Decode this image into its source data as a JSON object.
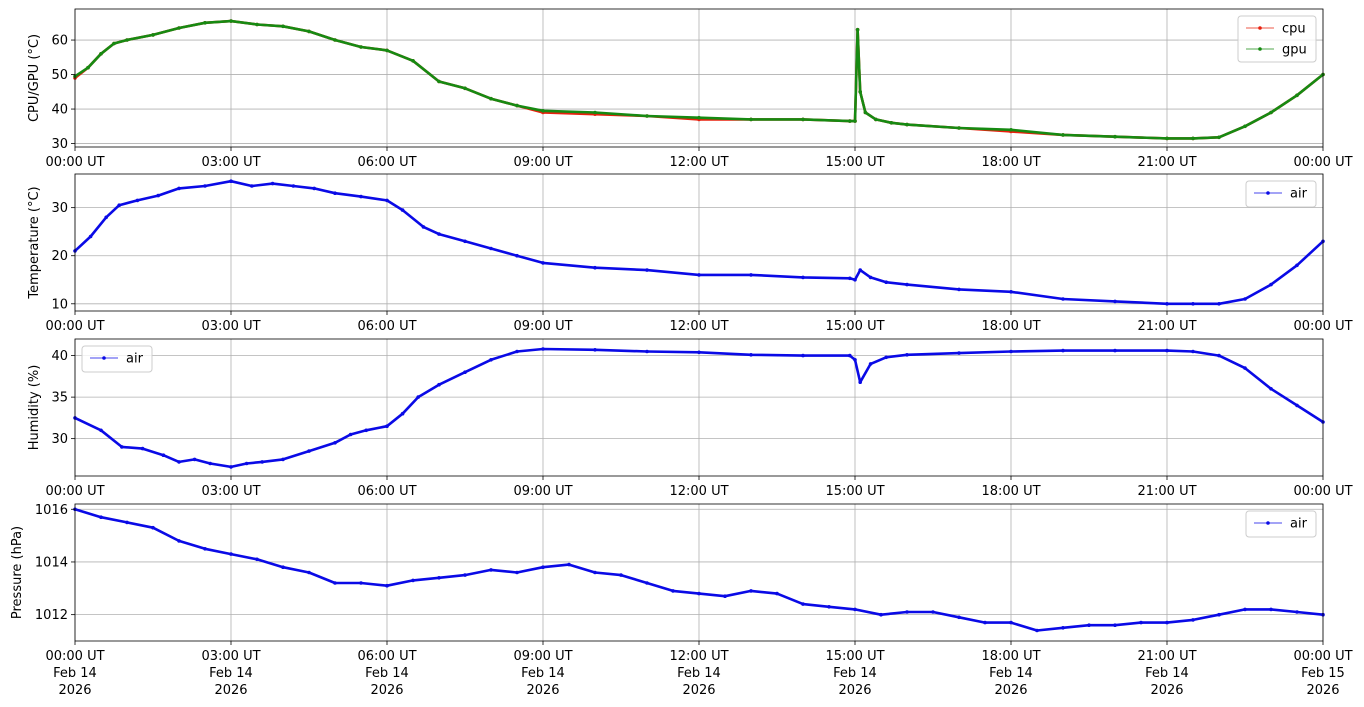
{
  "chart_data": [
    {
      "type": "scatter",
      "ylabel": "CPU/GPU (°C)",
      "xlim": [
        0,
        24
      ],
      "ylim": [
        29,
        69
      ],
      "yticks": [
        30,
        40,
        50,
        60
      ],
      "xticks": [
        0,
        3,
        6,
        9,
        12,
        15,
        18,
        21,
        24
      ],
      "xtick_labels": [
        "00:00 UT",
        "03:00 UT",
        "06:00 UT",
        "09:00 UT",
        "12:00 UT",
        "15:00 UT",
        "18:00 UT",
        "21:00 UT",
        "00:00 UT"
      ],
      "grid": true,
      "legend": "top-right",
      "series": [
        {
          "name": "cpu",
          "color": "#e8200e",
          "x": [
            0,
            0.25,
            0.5,
            0.75,
            1,
            1.5,
            2,
            2.5,
            3,
            3.5,
            4,
            4.5,
            5,
            5.5,
            6,
            6.5,
            7,
            7.5,
            8,
            8.5,
            9,
            10,
            11,
            12,
            13,
            14,
            14.9,
            15.0,
            15.05,
            15.1,
            15.2,
            15.4,
            15.7,
            16,
            17,
            18,
            19,
            20,
            21,
            21.5,
            22,
            22.5,
            23,
            23.5,
            24
          ],
          "y": [
            49,
            52,
            56,
            59,
            60,
            61.5,
            63.5,
            65,
            65.5,
            64.5,
            64,
            62.5,
            60,
            58,
            57,
            54,
            48,
            46,
            43,
            41,
            39,
            38.5,
            38,
            37,
            37,
            37,
            36.5,
            36.5,
            63,
            45,
            39,
            37,
            36,
            35.5,
            34.5,
            33.5,
            32.5,
            32,
            31.5,
            31.5,
            31.8,
            35,
            39,
            44,
            50
          ]
        },
        {
          "name": "gpu",
          "color": "#168a12",
          "x": [
            0,
            0.25,
            0.5,
            0.75,
            1,
            1.5,
            2,
            2.5,
            3,
            3.5,
            4,
            4.5,
            5,
            5.5,
            6,
            6.5,
            7,
            7.5,
            8,
            8.5,
            9,
            10,
            11,
            12,
            13,
            14,
            14.9,
            15.0,
            15.05,
            15.1,
            15.2,
            15.4,
            15.7,
            16,
            17,
            18,
            19,
            20,
            21,
            21.5,
            22,
            22.5,
            23,
            23.5,
            24
          ],
          "y": [
            49.5,
            52,
            56,
            59,
            60,
            61.5,
            63.5,
            65,
            65.5,
            64.5,
            64,
            62.5,
            60,
            58,
            57,
            54,
            48,
            46,
            43,
            41,
            39.5,
            39,
            38,
            37.5,
            37,
            37,
            36.5,
            36.5,
            63,
            45,
            39,
            37,
            36,
            35.5,
            34.5,
            34,
            32.5,
            32,
            31.5,
            31.5,
            31.8,
            35,
            39,
            44,
            50
          ]
        }
      ]
    },
    {
      "type": "scatter",
      "ylabel": "Temperature (°C)",
      "xlim": [
        0,
        24
      ],
      "ylim": [
        8.5,
        37
      ],
      "yticks": [
        10,
        20,
        30
      ],
      "xticks": [
        0,
        3,
        6,
        9,
        12,
        15,
        18,
        21,
        24
      ],
      "xtick_labels": [
        "00:00 UT",
        "03:00 UT",
        "06:00 UT",
        "09:00 UT",
        "12:00 UT",
        "15:00 UT",
        "18:00 UT",
        "21:00 UT",
        "00:00 UT"
      ],
      "grid": true,
      "legend": "top-right",
      "series": [
        {
          "name": "air",
          "color": "#0a0ae6",
          "x": [
            0,
            0.3,
            0.6,
            0.85,
            1.2,
            1.6,
            2,
            2.5,
            3,
            3.4,
            3.8,
            4.2,
            4.6,
            5,
            5.5,
            6,
            6.3,
            6.7,
            7,
            7.5,
            8,
            8.5,
            9,
            10,
            11,
            12,
            13,
            14,
            14.9,
            15.0,
            15.1,
            15.3,
            15.6,
            16,
            17,
            18,
            19,
            20,
            21,
            21.5,
            22,
            22.5,
            23,
            23.5,
            24
          ],
          "y": [
            21,
            24,
            28,
            30.5,
            31.5,
            32.5,
            34,
            34.5,
            35.5,
            34.5,
            35,
            34.5,
            34,
            33,
            32.3,
            31.5,
            29.5,
            26,
            24.5,
            23,
            21.5,
            20,
            18.5,
            17.5,
            17,
            16,
            16,
            15.5,
            15.3,
            15,
            17,
            15.5,
            14.5,
            14,
            13,
            12.5,
            11,
            10.5,
            10,
            10,
            10,
            11,
            14,
            18,
            23
          ]
        }
      ]
    },
    {
      "type": "scatter",
      "ylabel": "Humidity (%)",
      "xlim": [
        0,
        24
      ],
      "ylim": [
        25.5,
        42
      ],
      "yticks": [
        30,
        35,
        40
      ],
      "xticks": [
        0,
        3,
        6,
        9,
        12,
        15,
        18,
        21,
        24
      ],
      "xtick_labels": [
        "00:00 UT",
        "03:00 UT",
        "06:00 UT",
        "09:00 UT",
        "12:00 UT",
        "15:00 UT",
        "18:00 UT",
        "21:00 UT",
        "00:00 UT"
      ],
      "grid": true,
      "legend": "top-left",
      "series": [
        {
          "name": "air",
          "color": "#0a0ae6",
          "x": [
            0,
            0.5,
            0.9,
            1.3,
            1.7,
            2,
            2.3,
            2.6,
            3,
            3.3,
            3.6,
            4,
            4.5,
            5,
            5.3,
            5.6,
            6,
            6.3,
            6.6,
            7,
            7.5,
            8,
            8.5,
            9,
            10,
            11,
            12,
            13,
            14,
            14.9,
            15.0,
            15.1,
            15.3,
            15.6,
            16,
            17,
            18,
            19,
            20,
            21,
            21.5,
            22,
            22.5,
            23,
            23.5,
            24
          ],
          "y": [
            32.5,
            31,
            29,
            28.8,
            28,
            27.2,
            27.5,
            27,
            26.6,
            27,
            27.2,
            27.5,
            28.5,
            29.5,
            30.5,
            31,
            31.5,
            33,
            35,
            36.5,
            38,
            39.5,
            40.5,
            40.8,
            40.7,
            40.5,
            40.4,
            40.1,
            40,
            40,
            39.5,
            36.8,
            39,
            39.8,
            40.1,
            40.3,
            40.5,
            40.6,
            40.6,
            40.6,
            40.5,
            40,
            38.5,
            36,
            34,
            32
          ]
        }
      ]
    },
    {
      "type": "scatter",
      "ylabel": "Pressure (hPa)",
      "xlim": [
        0,
        24
      ],
      "ylim": [
        1011,
        1016.2
      ],
      "yticks": [
        1012,
        1014,
        1016
      ],
      "xticks": [
        0,
        3,
        6,
        9,
        12,
        15,
        18,
        21,
        24
      ],
      "xtick_labels": [
        "00:00 UT\nFeb 14\n2026",
        "03:00 UT\nFeb 14\n2026",
        "06:00 UT\nFeb 14\n2026",
        "09:00 UT\nFeb 14\n2026",
        "12:00 UT\nFeb 14\n2026",
        "15:00 UT\nFeb 14\n2026",
        "18:00 UT\nFeb 14\n2026",
        "21:00 UT\nFeb 14\n2026",
        "00:00 UT\nFeb 15\n2026"
      ],
      "grid": true,
      "legend": "top-right",
      "series": [
        {
          "name": "air",
          "color": "#0a0ae6",
          "x": [
            0,
            0.5,
            1,
            1.5,
            2,
            2.5,
            3,
            3.5,
            4,
            4.5,
            5,
            5.5,
            6,
            6.5,
            7,
            7.5,
            8,
            8.5,
            9,
            9.5,
            10,
            10.5,
            11,
            11.5,
            12,
            12.5,
            13,
            13.5,
            14,
            14.5,
            15,
            15.5,
            16,
            16.5,
            17,
            17.5,
            18,
            18.5,
            19,
            19.5,
            20,
            20.5,
            21,
            21.5,
            22,
            22.5,
            23,
            23.5,
            24
          ],
          "y": [
            1016,
            1015.7,
            1015.5,
            1015.3,
            1014.8,
            1014.5,
            1014.3,
            1014.1,
            1013.8,
            1013.6,
            1013.2,
            1013.2,
            1013.1,
            1013.3,
            1013.4,
            1013.5,
            1013.7,
            1013.6,
            1013.8,
            1013.9,
            1013.6,
            1013.5,
            1013.2,
            1012.9,
            1012.8,
            1012.7,
            1012.9,
            1012.8,
            1012.4,
            1012.3,
            1012.2,
            1012,
            1012.1,
            1012.1,
            1011.9,
            1011.7,
            1011.7,
            1011.4,
            1011.5,
            1011.6,
            1011.6,
            1011.7,
            1011.7,
            1011.8,
            1012,
            1012.2,
            1012.2,
            1012.1,
            1012
          ]
        }
      ]
    }
  ]
}
